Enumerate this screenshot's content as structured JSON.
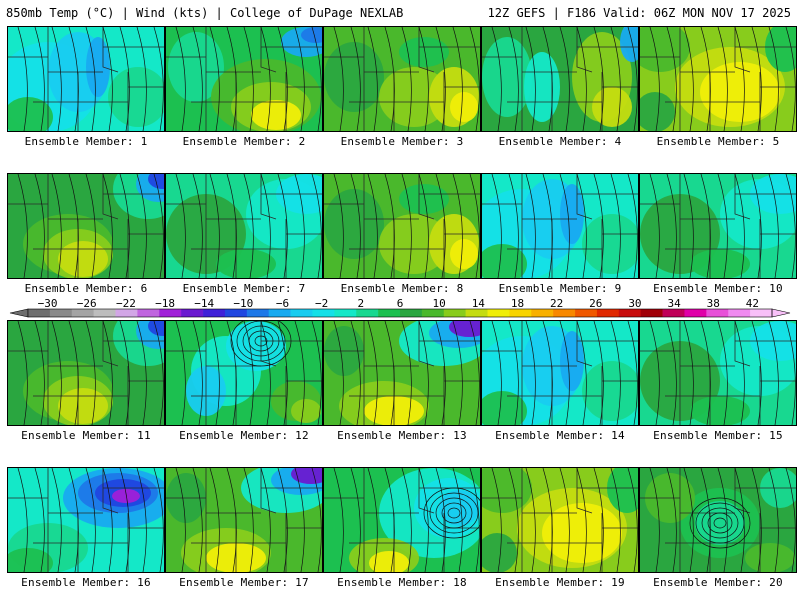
{
  "header": {
    "title_left": "850mb Temp (°C) | Wind (kts) | College of DuPage NEXLAB",
    "title_right": "12Z GEFS | F186 Valid: 06Z MON NOV 17 2025"
  },
  "panels": [
    {
      "label": "Ensemble Member: 1",
      "member": 1,
      "pattern": "cold"
    },
    {
      "label": "Ensemble Member: 2",
      "member": 2,
      "pattern": "warm-center"
    },
    {
      "label": "Ensemble Member: 3",
      "member": 3,
      "pattern": "green"
    },
    {
      "label": "Ensemble Member: 4",
      "member": 4,
      "pattern": "mixed"
    },
    {
      "label": "Ensemble Member: 5",
      "member": 5,
      "pattern": "warm"
    },
    {
      "label": "Ensemble Member: 6",
      "member": 6,
      "pattern": "warm-sw"
    },
    {
      "label": "Ensemble Member: 7",
      "member": 7,
      "pattern": "cool"
    },
    {
      "label": "Ensemble Member: 8",
      "member": 8,
      "pattern": "green"
    },
    {
      "label": "Ensemble Member: 9",
      "member": 9,
      "pattern": "cold"
    },
    {
      "label": "Ensemble Member: 10",
      "member": 10,
      "pattern": "cool"
    },
    {
      "label": "Ensemble Member: 11",
      "member": 11,
      "pattern": "warm-sw"
    },
    {
      "label": "Ensemble Member: 12",
      "member": 12,
      "pattern": "cool-low"
    },
    {
      "label": "Ensemble Member: 13",
      "member": 13,
      "pattern": "warm-ne-cold"
    },
    {
      "label": "Ensemble Member: 14",
      "member": 14,
      "pattern": "cold"
    },
    {
      "label": "Ensemble Member: 15",
      "member": 15,
      "pattern": "cool"
    },
    {
      "label": "Ensemble Member: 16",
      "member": 16,
      "pattern": "very-cold-ne"
    },
    {
      "label": "Ensemble Member: 17",
      "member": 17,
      "pattern": "warm-ne-cold"
    },
    {
      "label": "Ensemble Member: 18",
      "member": 18,
      "pattern": "low-east"
    },
    {
      "label": "Ensemble Member: 19",
      "member": 19,
      "pattern": "warm"
    },
    {
      "label": "Ensemble Member: 20",
      "member": 20,
      "pattern": "low-center"
    }
  ],
  "colorbar": {
    "unit": "°C",
    "ticks": [
      -30,
      -26,
      -22,
      -18,
      -14,
      -10,
      -6,
      -2,
      2,
      6,
      10,
      14,
      18,
      22,
      26,
      30,
      34,
      38,
      42
    ],
    "tick_labels": [
      "−30",
      "−26",
      "−22",
      "−18",
      "−14",
      "−10",
      "−6",
      "−2",
      "2",
      "6",
      "10",
      "14",
      "18",
      "22",
      "26",
      "30",
      "34",
      "38",
      "42"
    ],
    "colors": [
      "#6e6e6e",
      "#8a8a8a",
      "#a4a4a4",
      "#bdbdbd",
      "#d2a6e6",
      "#c064df",
      "#a020d8",
      "#6a1ad0",
      "#3f20d8",
      "#2046e0",
      "#1e78e8",
      "#18aaf0",
      "#18ccf0",
      "#14e0e8",
      "#14e8c8",
      "#18d890",
      "#1cc050",
      "#2aa640",
      "#4ab82c",
      "#88cc1c",
      "#c4dc10",
      "#f0ee08",
      "#f8d400",
      "#f8b000",
      "#f88800",
      "#f05800",
      "#e02800",
      "#c80c0c",
      "#a00008",
      "#c00058",
      "#e000a8",
      "#e850d8",
      "#f08af0",
      "#f8c0f8"
    ]
  }
}
